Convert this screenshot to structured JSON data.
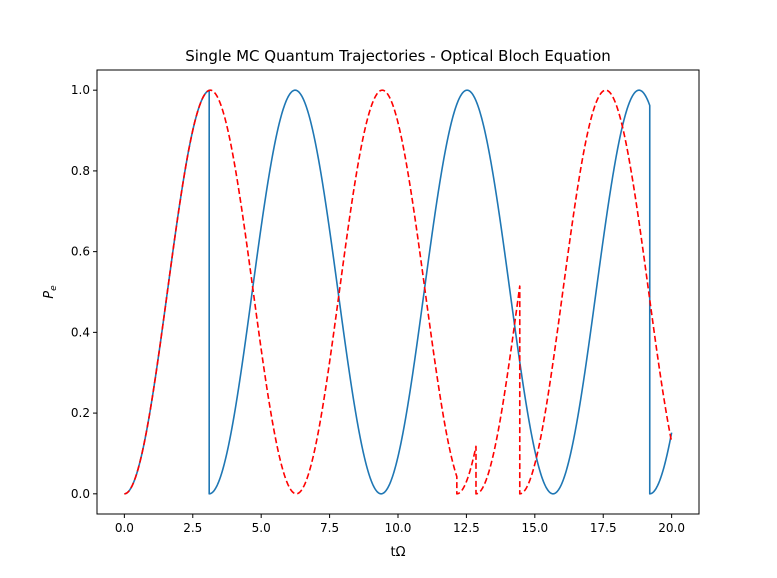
{
  "chart_data": {
    "type": "line",
    "title": "Single MC Quantum Trajectories - Optical Bloch Equation",
    "xlabel": "tΩ",
    "ylabel": "P",
    "ylabel_sub": "e",
    "xlim": [
      -1.0,
      21.0
    ],
    "ylim": [
      -0.05,
      1.05
    ],
    "xticks": [
      0.0,
      2.5,
      5.0,
      7.5,
      10.0,
      12.5,
      15.0,
      17.5,
      20.0
    ],
    "xtick_labels": [
      "0.0",
      "2.5",
      "5.0",
      "7.5",
      "10.0",
      "12.5",
      "15.0",
      "17.5",
      "20.0"
    ],
    "yticks": [
      0.0,
      0.2,
      0.4,
      0.6,
      0.8,
      1.0
    ],
    "ytick_labels": [
      "0.0",
      "0.2",
      "0.4",
      "0.6",
      "0.8",
      "1.0"
    ],
    "grid": false,
    "legend": "none",
    "series": [
      {
        "color": "#1f77b4",
        "style": "solid",
        "segments": [
          {
            "t0": 0.0,
            "t_start": 0.0,
            "t_end": 3.1
          },
          {
            "t0": 3.1,
            "t_start": 3.1,
            "t_end": 19.2
          },
          {
            "t0": 19.2,
            "t_start": 19.2,
            "t_end": 20.0
          }
        ]
      },
      {
        "color": "#ff0000",
        "style": "dashed",
        "segments": [
          {
            "t0": 0.0,
            "t_start": 0.0,
            "t_end": 12.15
          },
          {
            "t0": 12.15,
            "t_start": 12.15,
            "t_end": 12.85
          },
          {
            "t0": 12.85,
            "t_start": 12.85,
            "t_end": 14.45
          },
          {
            "t0": 14.45,
            "t_start": 14.45,
            "t_end": 20.0
          }
        ]
      }
    ]
  }
}
